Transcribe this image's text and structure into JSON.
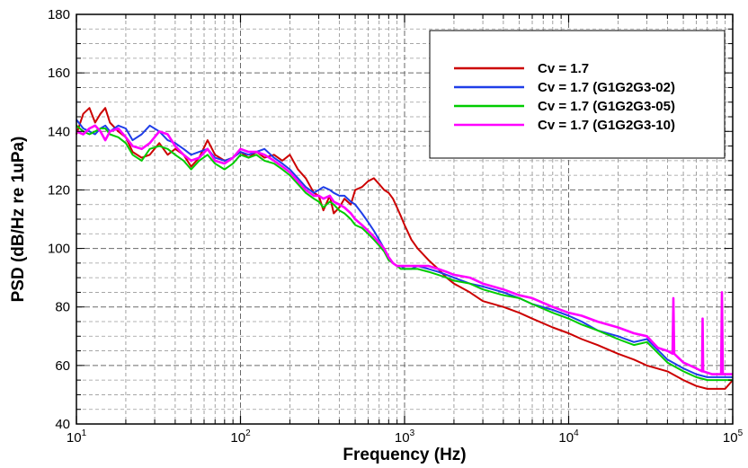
{
  "chart_data": {
    "type": "line",
    "xlabel": "Frequency (Hz)",
    "ylabel": "PSD (dB/Hz re 1uPa)",
    "xscale": "log",
    "xlim": [
      10,
      100000
    ],
    "ylim": [
      40,
      180
    ],
    "yticks": [
      40,
      60,
      80,
      100,
      120,
      140,
      160,
      180
    ],
    "xticks": [
      {
        "value": 10,
        "base": "10",
        "exp": "1"
      },
      {
        "value": 100,
        "base": "10",
        "exp": "2"
      },
      {
        "value": 1000,
        "base": "10",
        "exp": "3"
      },
      {
        "value": 10000,
        "base": "10",
        "exp": "4"
      },
      {
        "value": 100000,
        "base": "10",
        "exp": "5"
      }
    ],
    "grid": true,
    "legend_position": "top-right",
    "series": [
      {
        "name": "Cv = 1.7",
        "color": "#cc0000",
        "x": [
          10,
          11,
          12,
          13,
          14,
          15,
          16,
          18,
          20,
          22,
          25,
          28,
          32,
          36,
          40,
          45,
          50,
          56,
          63,
          70,
          80,
          90,
          100,
          112,
          125,
          140,
          160,
          180,
          200,
          224,
          250,
          280,
          300,
          320,
          350,
          370,
          400,
          430,
          470,
          500,
          550,
          600,
          650,
          700,
          750,
          800,
          850,
          900,
          950,
          1000,
          1100,
          1200,
          1400,
          1600,
          1800,
          2000,
          2500,
          3000,
          4000,
          5000,
          6000,
          8000,
          10000,
          12000,
          15000,
          20000,
          25000,
          30000,
          40000,
          50000,
          60000,
          70000,
          80000,
          90000,
          100000
        ],
        "y": [
          139,
          146,
          148,
          143,
          146,
          148,
          143,
          140,
          138,
          133,
          131,
          132,
          136,
          132,
          134,
          132,
          128,
          131,
          137,
          132,
          130,
          131,
          133,
          131,
          133,
          131,
          132,
          130,
          132,
          127,
          124,
          119,
          118,
          113,
          118,
          112,
          114,
          117,
          115,
          120,
          121,
          123,
          124,
          122,
          120,
          119,
          117,
          114,
          111,
          108,
          103,
          100,
          96,
          93,
          90,
          88,
          85,
          82,
          80,
          78,
          76,
          73,
          71,
          69,
          67,
          64,
          62,
          60,
          58,
          55,
          53,
          52,
          52,
          52,
          55
        ]
      },
      {
        "name": "Cv = 1.7 (G1G2G3-02)",
        "color": "#1f3ee8",
        "x": [
          10,
          11,
          12,
          13,
          14,
          15,
          16,
          18,
          20,
          22,
          25,
          28,
          32,
          36,
          40,
          45,
          50,
          56,
          63,
          70,
          80,
          90,
          100,
          112,
          125,
          140,
          160,
          180,
          200,
          224,
          250,
          280,
          300,
          320,
          350,
          370,
          400,
          430,
          470,
          500,
          550,
          600,
          650,
          700,
          750,
          800,
          850,
          900,
          950,
          1000,
          1100,
          1200,
          1400,
          1600,
          1800,
          2000,
          2500,
          3000,
          4000,
          5000,
          6000,
          8000,
          10000,
          12000,
          15000,
          20000,
          25000,
          30000,
          40000,
          50000,
          60000,
          70000,
          80000,
          90000,
          100000
        ],
        "y": [
          144,
          141,
          140,
          139,
          141,
          142,
          140,
          142,
          141,
          137,
          139,
          142,
          140,
          137,
          136,
          134,
          132,
          133,
          134,
          131,
          130,
          131,
          133,
          132,
          133,
          134,
          131,
          129,
          127,
          124,
          121,
          119,
          120,
          121,
          120,
          119,
          118,
          118,
          116,
          115,
          112,
          109,
          106,
          103,
          100,
          97,
          95,
          94,
          94,
          93,
          93,
          94,
          93,
          92,
          91,
          90,
          88,
          87,
          85,
          83,
          81,
          79,
          77,
          75,
          72,
          70,
          68,
          69,
          62,
          59,
          57,
          56,
          56,
          56,
          56
        ]
      },
      {
        "name": "Cv = 1.7 (G1G2G3-05)",
        "color": "#00cc00",
        "x": [
          10,
          11,
          12,
          13,
          14,
          15,
          16,
          18,
          20,
          22,
          25,
          28,
          32,
          36,
          40,
          45,
          50,
          56,
          63,
          70,
          80,
          90,
          100,
          112,
          125,
          140,
          160,
          180,
          200,
          224,
          250,
          280,
          300,
          320,
          350,
          370,
          400,
          430,
          470,
          500,
          550,
          600,
          650,
          700,
          750,
          800,
          850,
          900,
          950,
          1000,
          1100,
          1200,
          1400,
          1600,
          1800,
          2000,
          2500,
          3000,
          4000,
          5000,
          6000,
          8000,
          10000,
          12000,
          15000,
          20000,
          25000,
          30000,
          40000,
          50000,
          60000,
          70000,
          80000,
          90000,
          100000
        ],
        "y": [
          142,
          140,
          139,
          140,
          141,
          141,
          139,
          138,
          136,
          132,
          130,
          134,
          135,
          134,
          132,
          130,
          127,
          130,
          132,
          129,
          127,
          129,
          132,
          131,
          132,
          130,
          129,
          127,
          125,
          122,
          119,
          117,
          116,
          114,
          116,
          115,
          113,
          112,
          110,
          108,
          107,
          105,
          103,
          101,
          99,
          96,
          95,
          94,
          93,
          93,
          93,
          93,
          92,
          91,
          90,
          89,
          88,
          86,
          84,
          83,
          81,
          78,
          76,
          74,
          72,
          69,
          67,
          68,
          61,
          58,
          56,
          55,
          55,
          55,
          55
        ]
      },
      {
        "name": "Cv = 1.7 (G1G2G3-10)",
        "color": "#ff00ff",
        "x": [
          10,
          11,
          12,
          13,
          14,
          15,
          16,
          18,
          20,
          22,
          25,
          28,
          32,
          36,
          40,
          45,
          50,
          56,
          63,
          70,
          80,
          90,
          100,
          112,
          125,
          140,
          160,
          180,
          200,
          224,
          250,
          280,
          300,
          320,
          350,
          370,
          400,
          430,
          470,
          500,
          550,
          600,
          650,
          700,
          750,
          800,
          850,
          900,
          950,
          1000,
          1100,
          1200,
          1400,
          1600,
          1800,
          2000,
          2500,
          3000,
          4000,
          5000,
          6000,
          8000,
          10000,
          12000,
          15000,
          20000,
          25000,
          30000,
          35000,
          40000,
          43000,
          43500,
          44000,
          50000,
          60000,
          65000,
          65500,
          66000,
          75000,
          85000,
          86000,
          87000,
          90000,
          100000
        ],
        "y": [
          140,
          139,
          141,
          142,
          140,
          137,
          140,
          141,
          138,
          135,
          134,
          136,
          140,
          139,
          135,
          132,
          130,
          131,
          134,
          130,
          129,
          131,
          134,
          133,
          133,
          132,
          130,
          128,
          126,
          123,
          120,
          118,
          118,
          117,
          118,
          116,
          115,
          114,
          112,
          110,
          108,
          106,
          104,
          102,
          100,
          97,
          95,
          94,
          94,
          94,
          94,
          94,
          94,
          93,
          92,
          91,
          90,
          88,
          86,
          84,
          83,
          80,
          78,
          77,
          75,
          73,
          71,
          70,
          66,
          65,
          64,
          83,
          64,
          61,
          59,
          58,
          76,
          58,
          57,
          57,
          85,
          57,
          57,
          57
        ]
      }
    ]
  }
}
